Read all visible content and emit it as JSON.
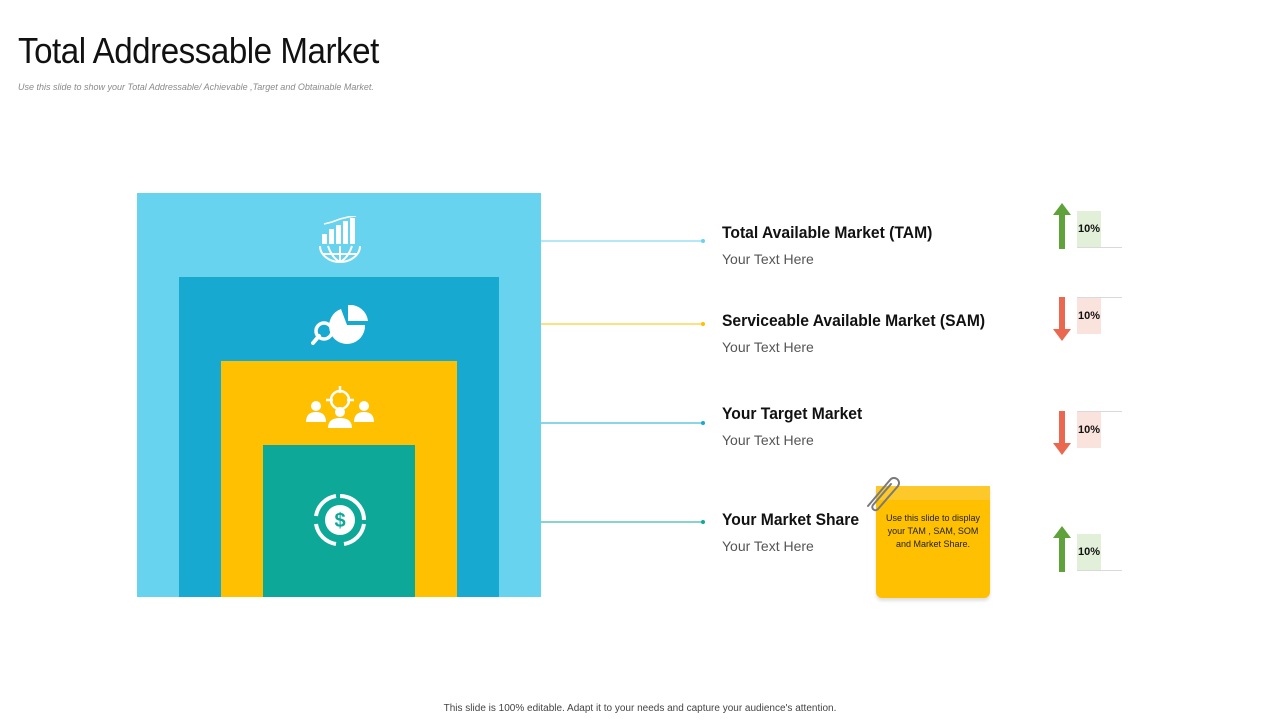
{
  "title": "Total Addressable Market",
  "subtitle": "Use this slide to show your Total Addressable/ Achievable ,Target and Obtainable Market.",
  "footer": "This slide is 100% editable. Adapt it to your needs and capture your audience's attention.",
  "colors": {
    "tam": "#67d3ef",
    "sam": "#18a9d0",
    "target": "#fec000",
    "share": "#0ea898",
    "arrow_up": "#5fa13a",
    "arrow_down": "#e9684f"
  },
  "icons": [
    "globe-chart-icon",
    "pie-search-icon",
    "team-target-icon",
    "dollar-coin-icon"
  ],
  "items": [
    {
      "heading": "Total Available Market (TAM)",
      "text": "Your Text Here",
      "percent": "10%",
      "direction": "up"
    },
    {
      "heading": "Serviceable Available Market (SAM)",
      "text": "Your Text Here",
      "percent": "10%",
      "direction": "down"
    },
    {
      "heading": "Your Target Market",
      "text": "Your Text Here",
      "percent": "10%",
      "direction": "down"
    },
    {
      "heading": "Your Market Share",
      "text": "Your Text Here",
      "percent": "10%",
      "direction": "up"
    }
  ],
  "note": {
    "text": "Use this slide to display your TAM , SAM, SOM and Market Share."
  }
}
